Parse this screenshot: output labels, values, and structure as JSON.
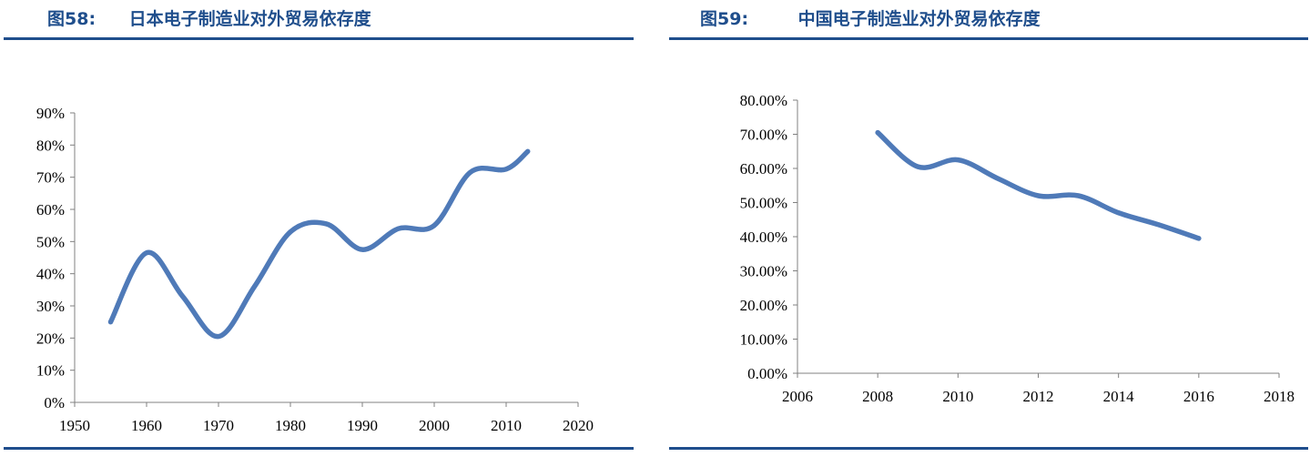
{
  "colors": {
    "title": "#1f4e8c",
    "rule": "#1f4e8c",
    "series": "#4f7ab8",
    "axis": "#808080"
  },
  "figures": [
    {
      "number": "图58:",
      "title": "日本电子制造业对外贸易依存度"
    },
    {
      "number": "图59:",
      "title": "中国电子制造业对外贸易依存度"
    }
  ],
  "chart_data": [
    {
      "type": "line",
      "title": "日本电子制造业对外贸易依存度",
      "xlim": [
        1950,
        2020
      ],
      "ylim": [
        0,
        90
      ],
      "x_ticks": [
        1950,
        1960,
        1970,
        1980,
        1990,
        2000,
        2010,
        2020
      ],
      "x_tick_labels": [
        "1950",
        "1960",
        "1970",
        "1980",
        "1990",
        "2000",
        "2010",
        "2020"
      ],
      "y_ticks": [
        0,
        10,
        20,
        30,
        40,
        50,
        60,
        70,
        80,
        90
      ],
      "y_tick_labels": [
        "0%",
        "10%",
        "20%",
        "30%",
        "40%",
        "50%",
        "60%",
        "70%",
        "80%",
        "90%"
      ],
      "grid": false,
      "series": [
        {
          "x": [
            1955,
            1960,
            1965,
            1970,
            1975,
            1980,
            1985,
            1990,
            1995,
            2000,
            2005,
            2010,
            2013
          ],
          "y": [
            25,
            46.5,
            33,
            20.5,
            36,
            53,
            55.5,
            47.5,
            54,
            55,
            71.5,
            72.5,
            78
          ]
        }
      ]
    },
    {
      "type": "line",
      "title": "中国电子制造业对外贸易依存度",
      "xlim": [
        2006,
        2018
      ],
      "ylim": [
        0,
        80
      ],
      "x_ticks": [
        2006,
        2008,
        2010,
        2012,
        2014,
        2016,
        2018
      ],
      "x_tick_labels": [
        "2006",
        "2008",
        "2010",
        "2012",
        "2014",
        "2016",
        "2018"
      ],
      "y_ticks": [
        0,
        10,
        20,
        30,
        40,
        50,
        60,
        70,
        80
      ],
      "y_tick_labels": [
        "0.00%",
        "10.00%",
        "20.00%",
        "30.00%",
        "40.00%",
        "50.00%",
        "60.00%",
        "70.00%",
        "80.00%"
      ],
      "grid": false,
      "series": [
        {
          "x": [
            2008,
            2009,
            2010,
            2011,
            2012,
            2013,
            2014,
            2015,
            2016
          ],
          "y": [
            70.5,
            60.5,
            62.5,
            57,
            52,
            52,
            47,
            43.5,
            39.5
          ]
        }
      ]
    }
  ]
}
